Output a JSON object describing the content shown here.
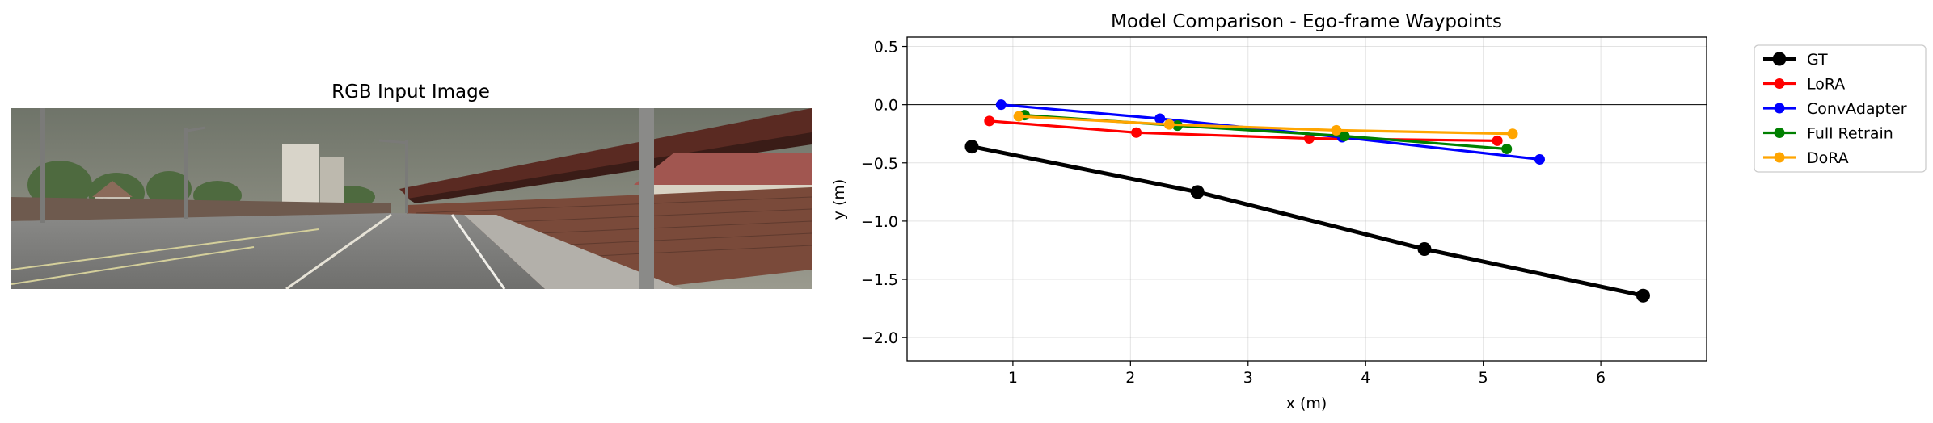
{
  "image_panel": {
    "title": "RGB Input Image"
  },
  "chart_data": {
    "type": "line",
    "title": "Model Comparison - Ego-frame Waypoints",
    "xlabel": "x (m)",
    "ylabel": "y (m)",
    "xlim": [
      0.1,
      6.9
    ],
    "ylim": [
      -2.2,
      0.58
    ],
    "xticks": [
      1,
      2,
      3,
      4,
      5,
      6
    ],
    "yticks": [
      0.5,
      0.0,
      -0.5,
      -1.0,
      -1.5,
      -2.0
    ],
    "xtick_labels": [
      "1",
      "2",
      "3",
      "4",
      "5",
      "6"
    ],
    "ytick_labels": [
      "0.5",
      "0.0",
      "−0.5",
      "−1.0",
      "−1.5",
      "−2.0"
    ],
    "grid": true,
    "zero_line": true,
    "legend_position": "outside right, top",
    "series": [
      {
        "name": "GT",
        "color": "#000000",
        "bold": true,
        "x": [
          0.65,
          2.57,
          4.5,
          6.36
        ],
        "y": [
          -0.36,
          -0.75,
          -1.24,
          -1.64
        ]
      },
      {
        "name": "LoRA",
        "color": "#ff0000",
        "x": [
          0.8,
          2.05,
          3.52,
          5.12
        ],
        "y": [
          -0.14,
          -0.24,
          -0.29,
          -0.31
        ]
      },
      {
        "name": "ConvAdapter",
        "color": "#0000ff",
        "x": [
          0.9,
          2.25,
          3.8,
          5.48
        ],
        "y": [
          0.0,
          -0.12,
          -0.28,
          -0.47
        ]
      },
      {
        "name": "Full Retrain",
        "color": "#008000",
        "x": [
          1.1,
          2.4,
          3.82,
          5.2
        ],
        "y": [
          -0.09,
          -0.18,
          -0.27,
          -0.38
        ]
      },
      {
        "name": "DoRA",
        "color": "#ffa500",
        "x": [
          1.05,
          2.33,
          3.75,
          5.25
        ],
        "y": [
          -0.1,
          -0.17,
          -0.22,
          -0.25
        ]
      }
    ]
  }
}
